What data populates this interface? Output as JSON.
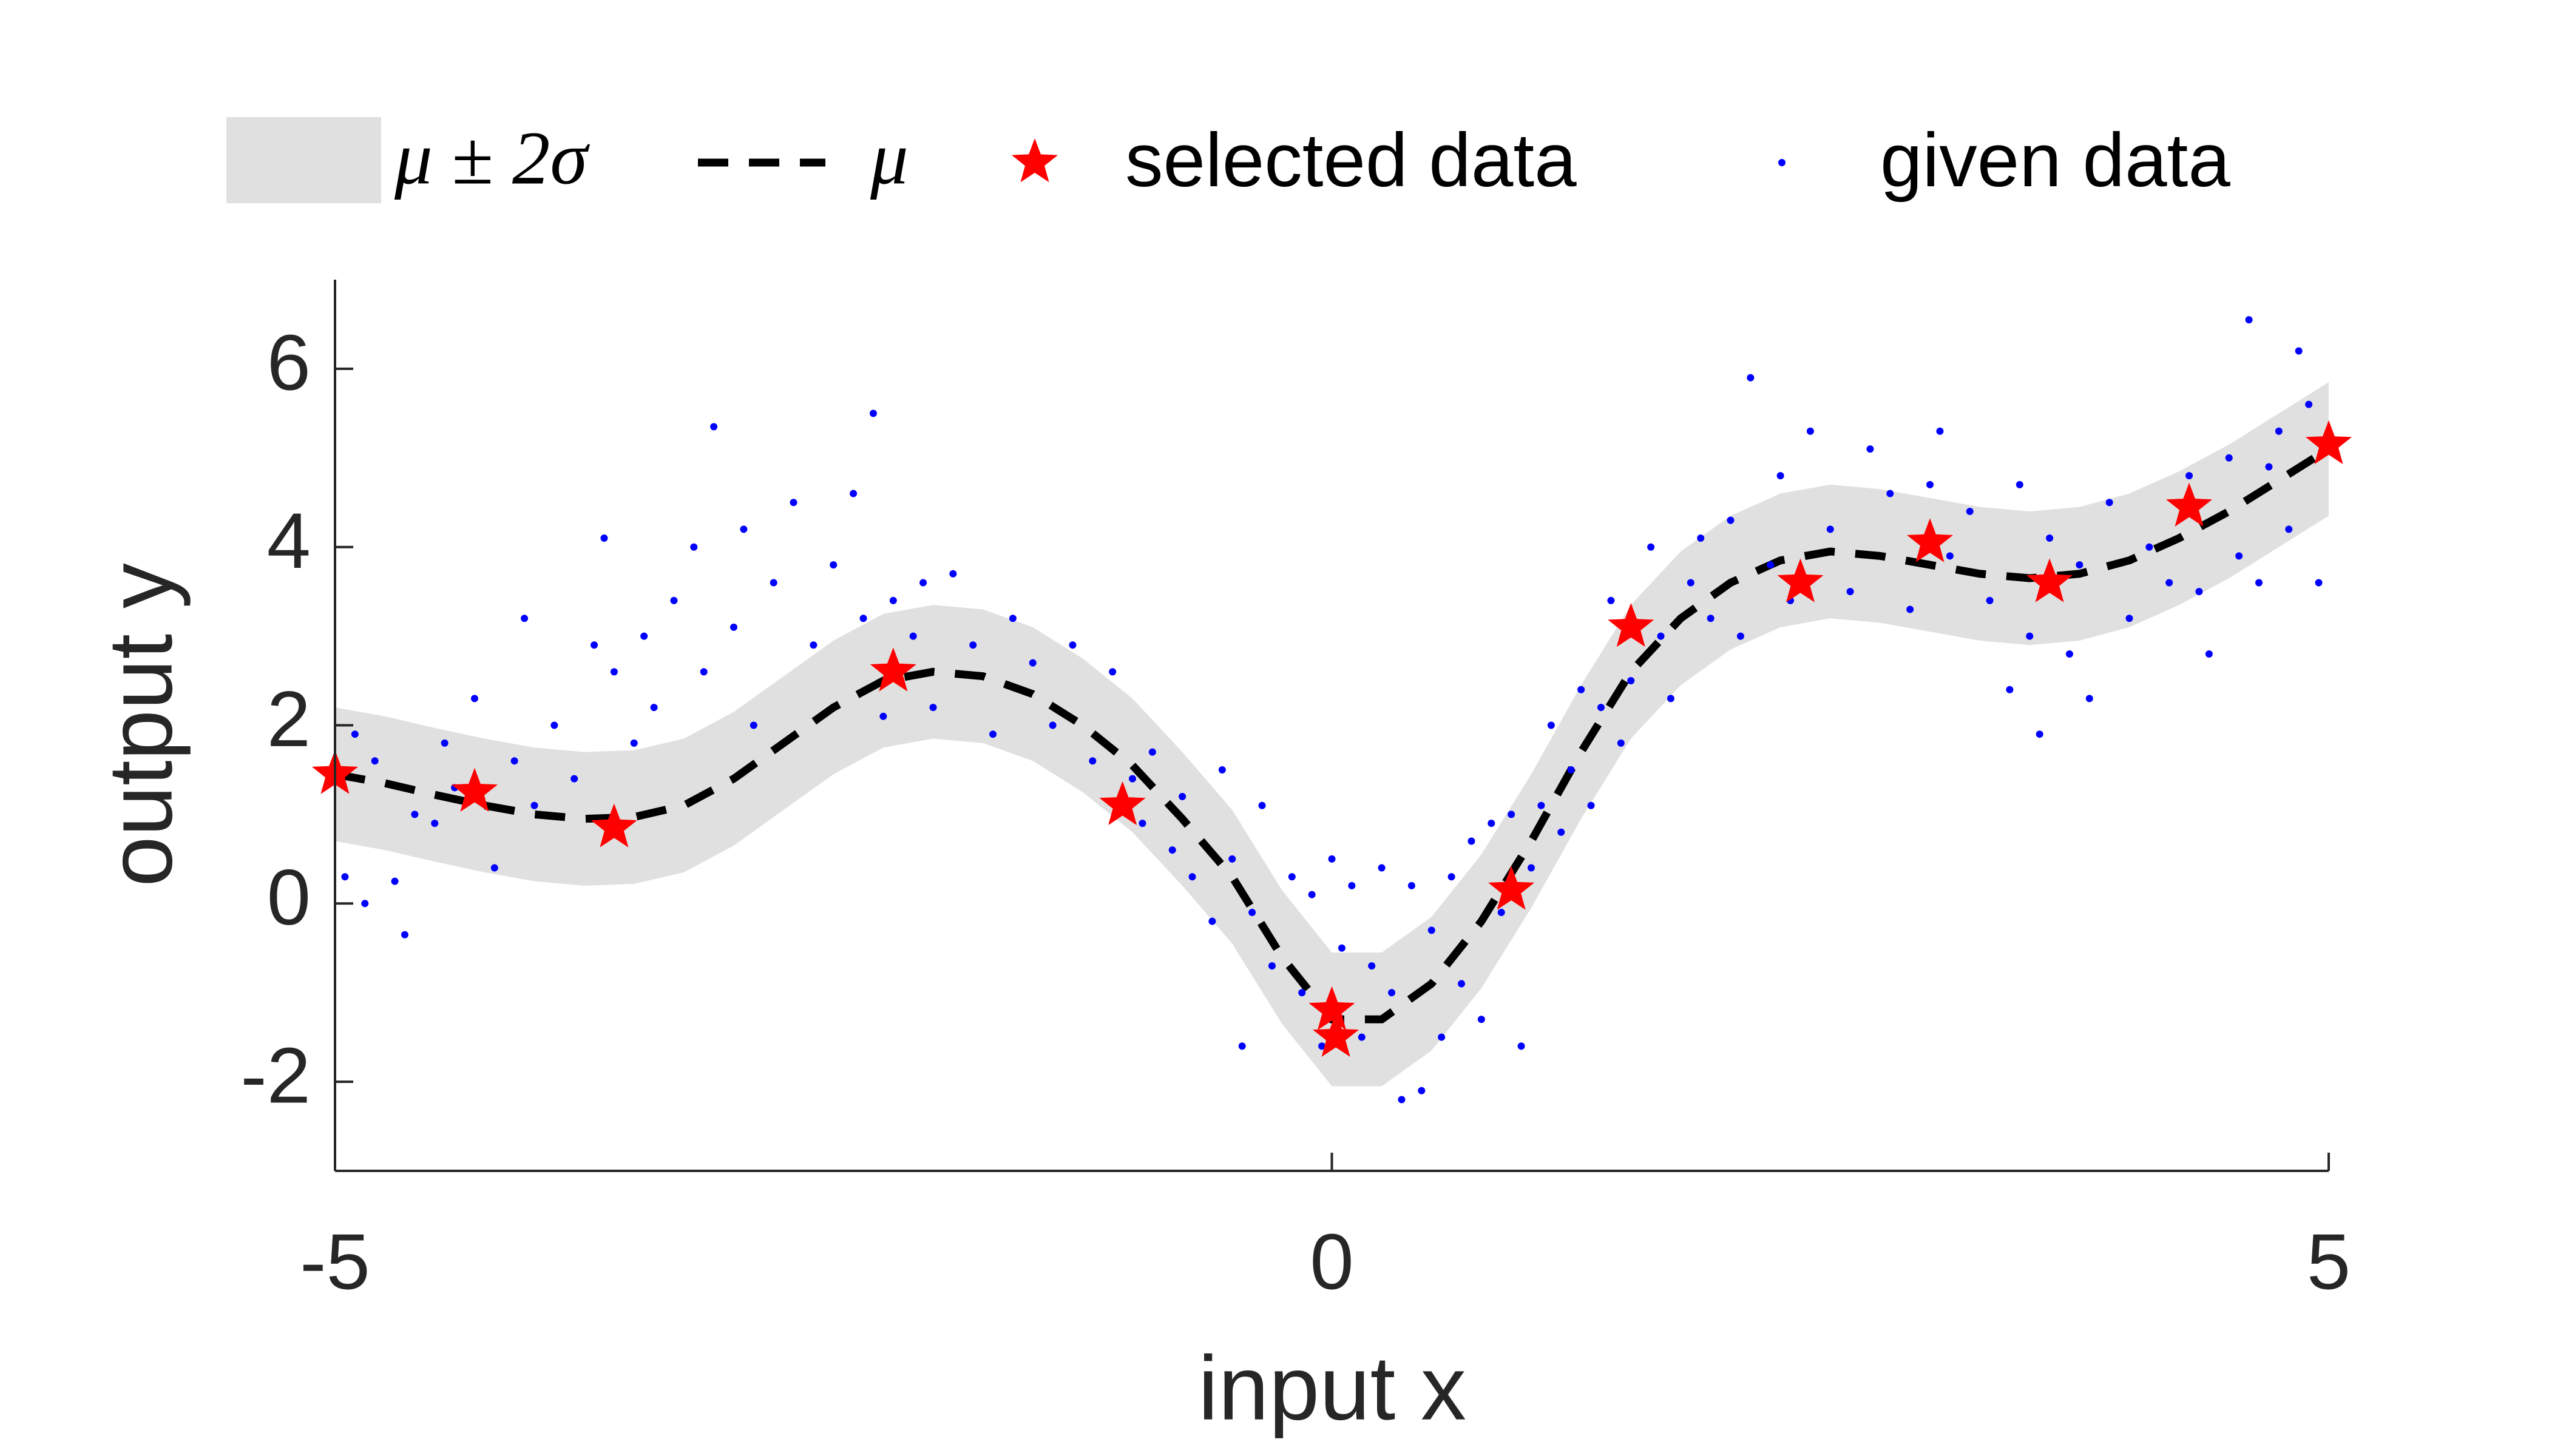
{
  "chart_data": {
    "type": "line",
    "xlabel": "input x",
    "ylabel": "output y",
    "xlim": [
      -5,
      5
    ],
    "ylim": [
      -3,
      7
    ],
    "xticks": [
      -5,
      0,
      5
    ],
    "yticks": [
      -2,
      0,
      2,
      4,
      6
    ],
    "grid": false,
    "legend": "top",
    "series": [
      {
        "name": "μ ± 2σ",
        "kind": "band",
        "color": "#e0e0e0",
        "x": [
          -5,
          -4.75,
          -4.5,
          -4.25,
          -4,
          -3.75,
          -3.5,
          -3.25,
          -3,
          -2.75,
          -2.5,
          -2.25,
          -2,
          -1.75,
          -1.5,
          -1.25,
          -1,
          -0.75,
          -0.5,
          -0.25,
          0,
          0.25,
          0.5,
          0.75,
          1,
          1.25,
          1.5,
          1.75,
          2,
          2.25,
          2.5,
          2.75,
          3,
          3.25,
          3.5,
          3.75,
          4,
          4.25,
          4.5,
          4.75,
          5
        ],
        "lower": [
          0.7,
          0.6,
          0.47,
          0.35,
          0.25,
          0.2,
          0.22,
          0.35,
          0.65,
          1.05,
          1.45,
          1.75,
          1.85,
          1.8,
          1.6,
          1.25,
          0.8,
          0.2,
          -0.45,
          -1.35,
          -2.05,
          -2.05,
          -1.65,
          -0.95,
          -0.05,
          0.95,
          1.85,
          2.45,
          2.85,
          3.1,
          3.2,
          3.15,
          3.05,
          2.95,
          2.9,
          2.95,
          3.1,
          3.35,
          3.65,
          4.0,
          4.35
        ],
        "upper": [
          2.2,
          2.1,
          1.97,
          1.85,
          1.75,
          1.7,
          1.72,
          1.85,
          2.15,
          2.55,
          2.95,
          3.25,
          3.35,
          3.3,
          3.1,
          2.75,
          2.3,
          1.7,
          1.05,
          0.15,
          -0.55,
          -0.55,
          -0.15,
          0.55,
          1.45,
          2.45,
          3.35,
          3.95,
          4.35,
          4.6,
          4.7,
          4.65,
          4.55,
          4.45,
          4.4,
          4.45,
          4.6,
          4.85,
          5.15,
          5.5,
          5.85
        ]
      },
      {
        "name": "μ",
        "kind": "dashed",
        "color": "#000000",
        "x": [
          -5,
          -4.75,
          -4.5,
          -4.25,
          -4,
          -3.75,
          -3.5,
          -3.25,
          -3,
          -2.75,
          -2.5,
          -2.25,
          -2,
          -1.75,
          -1.5,
          -1.25,
          -1,
          -0.75,
          -0.5,
          -0.25,
          0,
          0.25,
          0.5,
          0.75,
          1,
          1.25,
          1.5,
          1.75,
          2,
          2.25,
          2.5,
          2.75,
          3,
          3.25,
          3.5,
          3.75,
          4,
          4.25,
          4.5,
          4.75,
          5
        ],
        "values": [
          1.45,
          1.35,
          1.22,
          1.1,
          1.0,
          0.95,
          0.97,
          1.1,
          1.4,
          1.8,
          2.2,
          2.5,
          2.6,
          2.55,
          2.35,
          2.0,
          1.55,
          0.95,
          0.3,
          -0.6,
          -1.3,
          -1.3,
          -0.9,
          -0.2,
          0.7,
          1.7,
          2.6,
          3.2,
          3.6,
          3.85,
          3.95,
          3.9,
          3.8,
          3.7,
          3.65,
          3.7,
          3.85,
          4.1,
          4.4,
          4.75,
          5.1
        ]
      },
      {
        "name": "selected data",
        "kind": "star",
        "color": "#ff0000",
        "x": [
          -5,
          -4.3,
          -3.6,
          -2.2,
          -1.05,
          0,
          0.02,
          0.9,
          1.5,
          2.35,
          3,
          3.6,
          4.3,
          5
        ],
        "values": [
          1.45,
          1.25,
          0.85,
          2.6,
          1.1,
          -1.2,
          -1.5,
          0.15,
          3.1,
          3.6,
          4.05,
          3.6,
          4.45,
          5.15
        ]
      },
      {
        "name": "given data",
        "kind": "dot",
        "color": "#0000ff",
        "x": [
          -4.95,
          -4.9,
          -4.85,
          -4.8,
          -4.7,
          -4.65,
          -4.6,
          -4.5,
          -4.45,
          -4.4,
          -4.3,
          -4.2,
          -4.1,
          -4.05,
          -4.0,
          -3.9,
          -3.8,
          -3.7,
          -3.65,
          -3.6,
          -3.5,
          -3.45,
          -3.4,
          -3.3,
          -3.2,
          -3.15,
          -3.1,
          -3.0,
          -2.95,
          -2.9,
          -2.8,
          -2.7,
          -2.6,
          -2.5,
          -2.4,
          -2.35,
          -2.3,
          -2.25,
          -2.2,
          -2.1,
          -2.05,
          -2.0,
          -1.9,
          -1.8,
          -1.7,
          -1.6,
          -1.5,
          -1.4,
          -1.3,
          -1.2,
          -1.1,
          -1.0,
          -0.95,
          -0.9,
          -0.8,
          -0.75,
          -0.7,
          -0.6,
          -0.55,
          -0.5,
          -0.45,
          -0.4,
          -0.35,
          -0.3,
          -0.2,
          -0.15,
          -0.1,
          -0.05,
          0.0,
          0.05,
          0.1,
          0.15,
          0.2,
          0.25,
          0.3,
          0.35,
          0.4,
          0.45,
          0.5,
          0.55,
          0.6,
          0.65,
          0.7,
          0.75,
          0.8,
          0.85,
          0.9,
          0.95,
          1.0,
          1.05,
          1.1,
          1.15,
          1.2,
          1.25,
          1.3,
          1.35,
          1.4,
          1.45,
          1.5,
          1.6,
          1.65,
          1.7,
          1.8,
          1.85,
          1.9,
          2.0,
          2.05,
          2.1,
          2.2,
          2.25,
          2.3,
          2.4,
          2.5,
          2.6,
          2.7,
          2.8,
          2.9,
          3.0,
          3.05,
          3.1,
          3.2,
          3.3,
          3.4,
          3.45,
          3.5,
          3.55,
          3.6,
          3.7,
          3.75,
          3.8,
          3.9,
          4.0,
          4.1,
          4.2,
          4.3,
          4.35,
          4.4,
          4.5,
          4.55,
          4.6,
          4.65,
          4.7,
          4.75,
          4.8,
          4.85,
          4.9,
          4.95,
          5.0
        ],
        "values": [
          0.3,
          1.9,
          0.0,
          1.6,
          0.25,
          -0.35,
          1.0,
          0.9,
          1.8,
          1.3,
          2.3,
          0.4,
          1.6,
          3.2,
          1.1,
          2.0,
          1.4,
          2.9,
          4.1,
          2.6,
          1.8,
          3.0,
          2.2,
          3.4,
          4.0,
          2.6,
          5.35,
          3.1,
          4.2,
          2.0,
          3.6,
          4.5,
          2.9,
          3.8,
          4.6,
          3.2,
          5.5,
          2.1,
          3.4,
          3.0,
          3.6,
          2.2,
          3.7,
          2.9,
          1.9,
          3.2,
          2.7,
          2.0,
          2.9,
          1.6,
          2.6,
          1.4,
          0.9,
          1.7,
          0.6,
          1.2,
          0.3,
          -0.2,
          1.5,
          0.5,
          -1.6,
          -0.1,
          1.1,
          -0.7,
          0.3,
          -1.0,
          0.1,
          -1.6,
          0.5,
          -0.5,
          0.2,
          -1.5,
          -0.7,
          0.4,
          -1.0,
          -2.2,
          0.2,
          -2.1,
          -0.3,
          -1.5,
          0.3,
          -0.9,
          0.7,
          -1.3,
          0.9,
          -0.1,
          1.0,
          -1.6,
          0.4,
          1.1,
          2.0,
          0.8,
          1.5,
          2.4,
          1.1,
          2.2,
          3.4,
          1.8,
          2.5,
          4.0,
          3.0,
          2.3,
          3.6,
          4.1,
          3.2,
          4.3,
          3.0,
          5.9,
          3.8,
          4.8,
          3.4,
          5.3,
          4.2,
          3.5,
          5.1,
          4.6,
          3.3,
          4.7,
          5.3,
          3.9,
          4.4,
          3.4,
          2.4,
          4.7,
          3.0,
          1.9,
          4.1,
          2.8,
          3.8,
          2.3,
          4.5,
          3.2,
          4.0,
          3.6,
          4.8,
          3.5,
          2.8,
          5.0,
          3.9,
          6.55,
          3.6,
          4.9,
          5.3,
          4.2,
          6.2,
          5.6,
          3.6,
          5.2
        ]
      }
    ]
  }
}
